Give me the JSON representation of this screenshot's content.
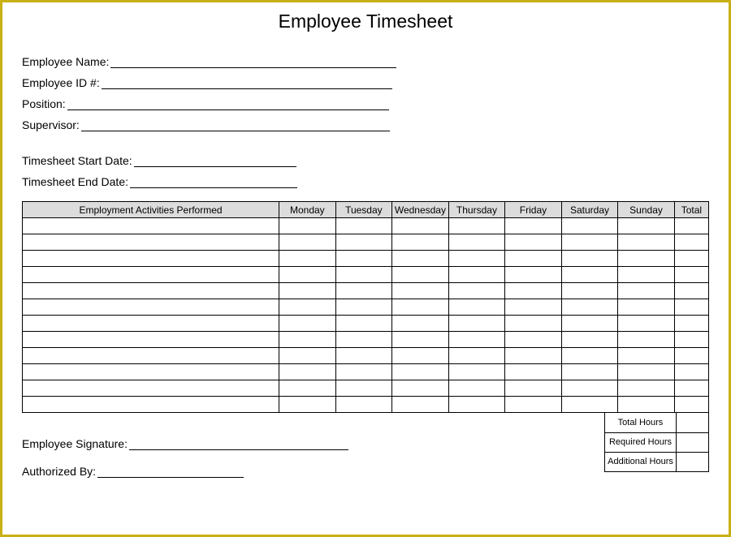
{
  "border_color": "#c9b015",
  "header_bg": "#dcdcdc",
  "title": "Employee Timesheet",
  "fields": {
    "employee_name": {
      "label": "Employee Name:",
      "line_width": 352
    },
    "employee_id": {
      "label": "Employee ID #:",
      "line_width": 358
    },
    "position": {
      "label": "Position:",
      "line_width": 396
    },
    "supervisor": {
      "label": "Supervisor:",
      "line_width": 380
    },
    "start_date": {
      "label": "Timesheet Start Date:",
      "line_width": 200
    },
    "end_date": {
      "label": "Timesheet End Date:",
      "line_width": 206
    }
  },
  "table": {
    "columns": [
      "Employment Activities Performed",
      "Monday",
      "Tuesday",
      "Wednesday",
      "Thursday",
      "Friday",
      "Saturday",
      "Sunday",
      "Total"
    ],
    "blank_rows": 12
  },
  "summary": {
    "rows": [
      {
        "label": "Total Hours",
        "value": ""
      },
      {
        "label": "Required Hours",
        "value": ""
      },
      {
        "label": "Additional Hours",
        "value": ""
      }
    ]
  },
  "signatures": {
    "employee": {
      "label": "Employee Signature:",
      "line_width": 270
    },
    "authorized": {
      "label": "Authorized By:",
      "line_width": 180
    }
  }
}
